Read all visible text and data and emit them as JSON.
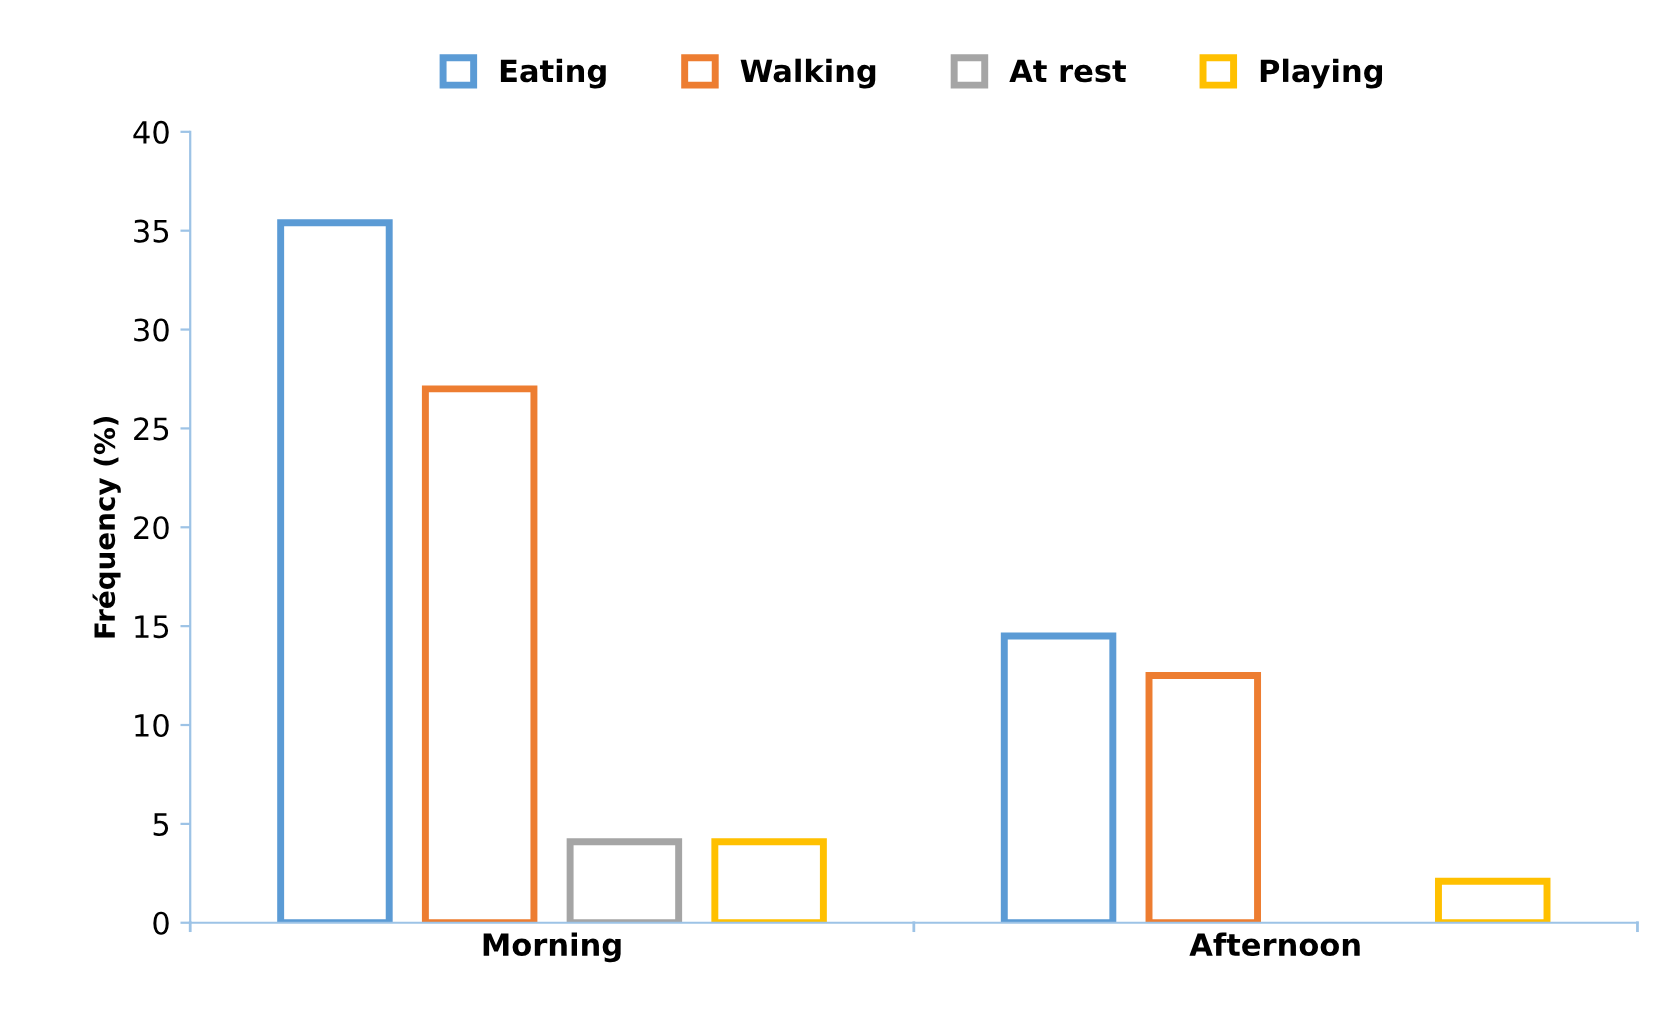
{
  "chart_data": {
    "type": "bar",
    "ylabel": "Fréquency (%)",
    "categories": [
      "Morning",
      "Afternoon"
    ],
    "series": [
      {
        "name": "Eating",
        "color": "#5b9bd5",
        "values": [
          35.4,
          14.5
        ]
      },
      {
        "name": "Walking",
        "color": "#ed7d31",
        "values": [
          27.0,
          12.5
        ]
      },
      {
        "name": "At rest",
        "color": "#a5a5a5",
        "values": [
          4.1,
          0
        ]
      },
      {
        "name": "Playing",
        "color": "#ffc000",
        "values": [
          4.1,
          2.1
        ]
      }
    ],
    "ylim": [
      0,
      40
    ],
    "yticks": [
      0,
      5,
      10,
      15,
      20,
      25,
      30,
      35,
      40
    ],
    "grid": false,
    "legend": "top"
  }
}
